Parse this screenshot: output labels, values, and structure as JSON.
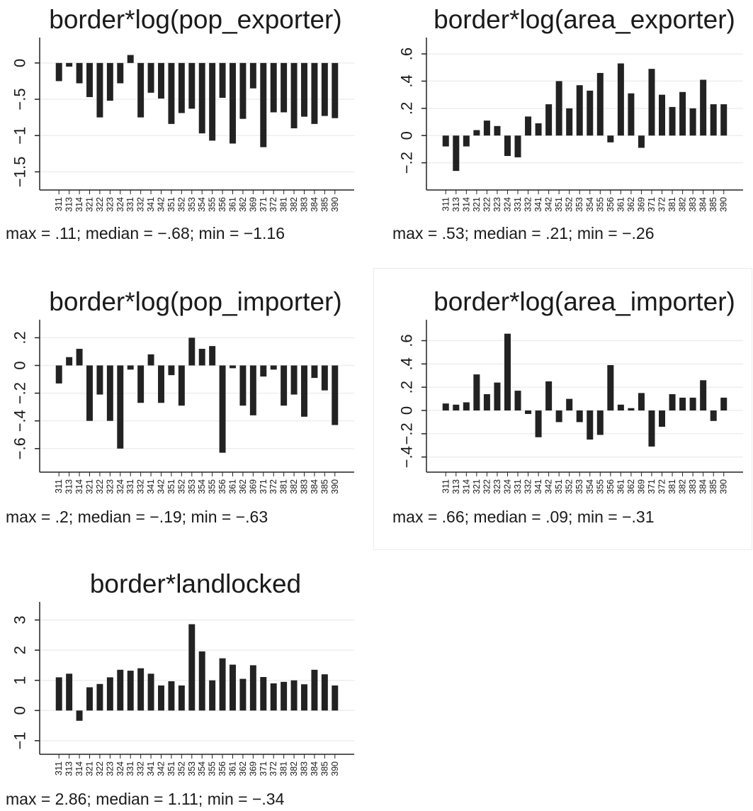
{
  "colors": {
    "bar": "#222222",
    "axis": "#222222",
    "grid": "#eeeeee",
    "text": "#1a1a1a"
  },
  "chart_data": [
    {
      "type": "bar",
      "title": "border*log(pop_exporter)",
      "categories": [
        "311",
        "313",
        "314",
        "321",
        "322",
        "323",
        "324",
        "331",
        "332",
        "341",
        "342",
        "351",
        "352",
        "353",
        "354",
        "355",
        "356",
        "361",
        "362",
        "369",
        "371",
        "372",
        "381",
        "382",
        "383",
        "384",
        "385",
        "390"
      ],
      "values": [
        -0.25,
        -0.05,
        -0.28,
        -0.47,
        -0.75,
        -0.52,
        -0.28,
        0.11,
        -0.75,
        -0.41,
        -0.49,
        -0.84,
        -0.69,
        -0.63,
        -0.97,
        -1.07,
        -0.48,
        -1.11,
        -0.77,
        -0.35,
        -1.16,
        -0.68,
        -0.68,
        -0.9,
        -0.74,
        -0.84,
        -0.73,
        -0.76
      ],
      "yticks": [
        0,
        -0.5,
        -1,
        -1.5
      ],
      "ytick_labels": [
        "0",
        "−.5",
        "−1",
        "−1.5"
      ],
      "ylim": [
        -1.75,
        0.35
      ],
      "grid": true,
      "caption": "max = .11; median = −.68; min = −1.16"
    },
    {
      "type": "bar",
      "title": "border*log(area_exporter)",
      "categories": [
        "311",
        "313",
        "314",
        "321",
        "322",
        "323",
        "324",
        "331",
        "332",
        "341",
        "342",
        "351",
        "352",
        "353",
        "354",
        "355",
        "356",
        "361",
        "362",
        "369",
        "371",
        "372",
        "381",
        "382",
        "383",
        "384",
        "385",
        "390"
      ],
      "values": [
        -0.08,
        -0.26,
        -0.08,
        0.04,
        0.11,
        0.07,
        -0.15,
        -0.16,
        0.14,
        0.09,
        0.23,
        0.4,
        0.2,
        0.37,
        0.33,
        0.46,
        -0.05,
        0.53,
        0.31,
        -0.09,
        0.49,
        0.3,
        0.21,
        0.32,
        0.2,
        0.41,
        0.23,
        0.23
      ],
      "yticks": [
        -0.2,
        0,
        0.2,
        0.4,
        0.6
      ],
      "ytick_labels": [
        "−.2",
        "0",
        ".2",
        ".4",
        ".6"
      ],
      "ylim": [
        -0.4,
        0.72
      ],
      "grid": true,
      "caption": "max = .53; median = .21; min = −.26"
    },
    {
      "type": "bar",
      "title": "border*log(pop_importer)",
      "categories": [
        "311",
        "313",
        "314",
        "321",
        "322",
        "323",
        "324",
        "331",
        "332",
        "341",
        "342",
        "351",
        "352",
        "353",
        "354",
        "355",
        "356",
        "361",
        "362",
        "369",
        "371",
        "372",
        "381",
        "382",
        "383",
        "384",
        "385",
        "390"
      ],
      "values": [
        -0.13,
        0.06,
        0.12,
        -0.4,
        -0.21,
        -0.4,
        -0.6,
        -0.03,
        -0.27,
        0.08,
        -0.27,
        -0.07,
        -0.29,
        0.2,
        0.12,
        0.14,
        -0.63,
        -0.02,
        -0.29,
        -0.36,
        -0.08,
        -0.03,
        -0.29,
        -0.21,
        -0.37,
        -0.09,
        -0.18,
        -0.43
      ],
      "yticks": [
        -0.6,
        -0.4,
        -0.2,
        0,
        0.2
      ],
      "ytick_labels": [
        "−.6",
        "−.4",
        "−.2",
        "0",
        ".2"
      ],
      "ylim": [
        -0.77,
        0.33
      ],
      "grid": true,
      "caption": "max = .2; median = −.19; min = −.63"
    },
    {
      "type": "bar",
      "title": "border*log(area_importer)",
      "categories": [
        "311",
        "313",
        "314",
        "321",
        "322",
        "323",
        "324",
        "331",
        "332",
        "341",
        "342",
        "351",
        "352",
        "353",
        "354",
        "355",
        "356",
        "361",
        "362",
        "369",
        "371",
        "372",
        "381",
        "382",
        "383",
        "384",
        "385",
        "390"
      ],
      "values": [
        0.06,
        0.05,
        0.07,
        0.31,
        0.14,
        0.24,
        0.66,
        0.17,
        -0.03,
        -0.23,
        0.25,
        -0.1,
        0.1,
        -0.1,
        -0.25,
        -0.21,
        0.39,
        0.05,
        0.02,
        0.15,
        -0.31,
        -0.14,
        0.14,
        0.11,
        0.11,
        0.26,
        -0.09,
        0.11
      ],
      "yticks": [
        -0.4,
        -0.2,
        0,
        0.2,
        0.4,
        0.6
      ],
      "ytick_labels": [
        "−.4",
        "−.2",
        "0",
        ".2",
        ".4",
        ".6"
      ],
      "ylim": [
        -0.53,
        0.78
      ],
      "grid": true,
      "caption": "max = .66; median = .09; min = −.31"
    },
    {
      "type": "bar",
      "title": "border*landlocked",
      "categories": [
        "311",
        "313",
        "314",
        "321",
        "322",
        "323",
        "324",
        "331",
        "332",
        "341",
        "342",
        "351",
        "352",
        "353",
        "354",
        "355",
        "356",
        "361",
        "362",
        "369",
        "371",
        "372",
        "381",
        "382",
        "383",
        "384",
        "385",
        "390"
      ],
      "values": [
        1.1,
        1.22,
        -0.34,
        0.77,
        0.88,
        1.1,
        1.35,
        1.32,
        1.4,
        1.22,
        0.83,
        0.97,
        0.83,
        2.86,
        1.96,
        1.0,
        1.73,
        1.52,
        1.05,
        1.5,
        1.11,
        0.9,
        0.95,
        1.0,
        0.87,
        1.35,
        1.2,
        0.83
      ],
      "yticks": [
        -1,
        0,
        1,
        2,
        3
      ],
      "ytick_labels": [
        "−1",
        "0",
        "1",
        "2",
        "3"
      ],
      "ylim": [
        -1.45,
        3.6
      ],
      "grid": true,
      "caption": "max = 2.86; median = 1.11; min = −.34"
    }
  ]
}
